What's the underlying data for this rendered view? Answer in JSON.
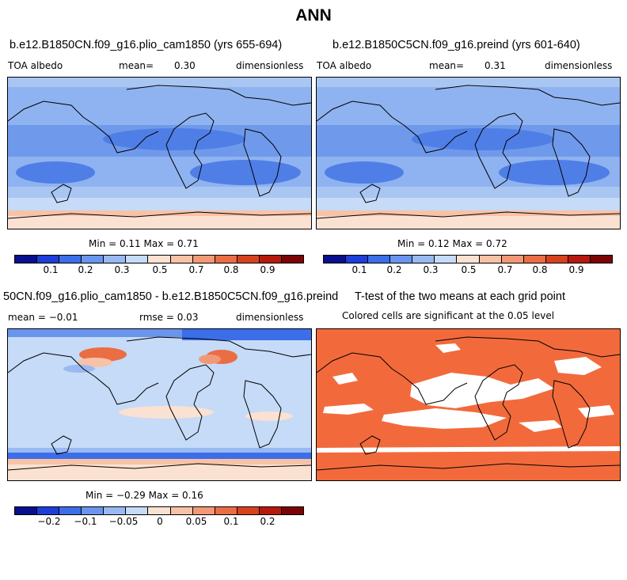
{
  "main_title": "ANN",
  "panels": {
    "p1": {
      "title": "b.e12.B1850CN.f09_g16.plio_cam1850 (yrs 655-694)",
      "var": "TOA albedo",
      "mean_label": "mean=",
      "mean_value": "0.30",
      "units": "dimensionless",
      "minmax": "Min =   0.11 Max =   0.71"
    },
    "p2": {
      "title": "b.e12.B1850C5CN.f09_g16.preind (yrs 601-640)",
      "var": "TOA albedo",
      "mean_label": "mean=",
      "mean_value": "0.31",
      "units": "dimensionless",
      "minmax": "Min =   0.12 Max =   0.72"
    },
    "p3": {
      "title": "50CN.f09_g16.plio_cam1850 - b.e12.B1850C5CN.f09_g16.preind",
      "mean_text": "mean =  −0.01",
      "rmse_text": "rmse =   0.03",
      "units": "dimensionless",
      "minmax": "Min =  −0.29 Max =   0.16"
    },
    "p4": {
      "title": "T-test of the two means at each grid point",
      "subtitle": "Colored cells are significant at the 0.05 level"
    }
  },
  "colorbar_abs": {
    "colors": [
      "#08108e",
      "#1d3ed8",
      "#3c6ee9",
      "#6a95ee",
      "#99b9f2",
      "#c5dbf7",
      "#fbe1d2",
      "#f8c2a7",
      "#f39876",
      "#ea6d44",
      "#d7421e",
      "#b8190f",
      "#7c0405"
    ],
    "tick_labels": [
      "0.1",
      "0.2",
      "0.3",
      "0.5",
      "0.7",
      "0.8",
      "0.9"
    ]
  },
  "colorbar_diff": {
    "colors": [
      "#08108e",
      "#1d3ed8",
      "#3c6ee9",
      "#6a95ee",
      "#99b9f2",
      "#c5dbf7",
      "#fbe1d2",
      "#f8c2a7",
      "#f39876",
      "#ea6d44",
      "#d7421e",
      "#b8190f",
      "#7c0405"
    ],
    "tick_labels": [
      "−0.2",
      "−0.1",
      "−0.05",
      "0",
      "0.05",
      "0.1",
      "0.2"
    ]
  },
  "chart_data": [
    {
      "type": "heatmap",
      "title": "b.e12.B1850CN.f09_g16.plio_cam1850 (yrs 655-694)",
      "variable": "TOA albedo",
      "units": "dimensionless",
      "mean": 0.3,
      "min": 0.11,
      "max": 0.71,
      "colorbar_ticks": [
        0.1,
        0.2,
        0.3,
        0.5,
        0.7,
        0.8,
        0.9
      ]
    },
    {
      "type": "heatmap",
      "title": "b.e12.B1850C5CN.f09_g16.preind (yrs 601-640)",
      "variable": "TOA albedo",
      "units": "dimensionless",
      "mean": 0.31,
      "min": 0.12,
      "max": 0.72,
      "colorbar_ticks": [
        0.1,
        0.2,
        0.3,
        0.5,
        0.7,
        0.8,
        0.9
      ]
    },
    {
      "type": "heatmap",
      "title": "50CN.f09_g16.plio_cam1850 - b.e12.B1850C5CN.f09_g16.preind",
      "units": "dimensionless",
      "mean": -0.01,
      "rmse": 0.03,
      "min": -0.29,
      "max": 0.16,
      "colorbar_ticks": [
        -0.2,
        -0.1,
        -0.05,
        0,
        0.05,
        0.1,
        0.2
      ]
    },
    {
      "type": "heatmap",
      "title": "T-test of the two means at each grid point",
      "subtitle": "Colored cells are significant at the 0.05 level",
      "significant_color": "#f26a3c"
    }
  ]
}
